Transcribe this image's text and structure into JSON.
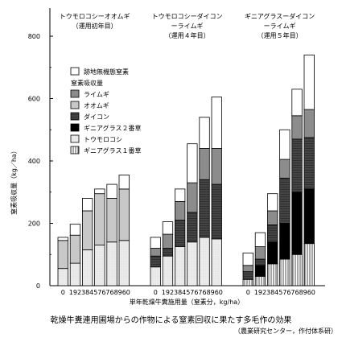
{
  "chart_data": {
    "type": "bar",
    "stacked": true,
    "ylabel": "窒素吸収量",
    "yunit": "（kg／ha）",
    "xlabel": "単年乾燥牛糞施用量（窒素分，kg/ha）",
    "ylim": [
      0,
      900
    ],
    "yticks": [
      0,
      200,
      400,
      600,
      800
    ],
    "groups": [
      {
        "title": "トウモロコシーオオムギ",
        "subtitle": "（運用初年目）",
        "categories": [
          "0",
          "192",
          "384",
          "576",
          "768",
          "960"
        ],
        "series": [
          {
            "name": "ギニアグラス１番草",
            "values": [
              0,
              0,
              0,
              0,
              0,
              0
            ]
          },
          {
            "name": "トウモロコシ",
            "values": [
              55,
              72,
              115,
              130,
              140,
              145
            ]
          },
          {
            "name": "ギニアグラス２番草",
            "values": [
              0,
              0,
              0,
              0,
              0,
              0
            ]
          },
          {
            "name": "ダイコン",
            "values": [
              0,
              0,
              0,
              0,
              0,
              0
            ]
          },
          {
            "name": "オオムギ",
            "values": [
              90,
              90,
              125,
              165,
              140,
              165
            ]
          },
          {
            "name": "ライムギ",
            "values": [
              0,
              0,
              0,
              0,
              0,
              0
            ]
          },
          {
            "name": "跡地無機態窒素",
            "values": [
              10,
              35,
              40,
              15,
              45,
              45
            ]
          }
        ]
      },
      {
        "title": "トウモロコシーダイコン",
        "subtitle2": "ーライムギ",
        "subtitle": "（運用４年目）",
        "categories": [
          "0",
          "192",
          "384",
          "576",
          "768",
          "960"
        ],
        "series": [
          {
            "name": "ギニアグラス１番草",
            "values": [
              0,
              0,
              0,
              0,
              0,
              0
            ]
          },
          {
            "name": "トウモロコシ",
            "values": [
              60,
              95,
              125,
              140,
              155,
              150
            ]
          },
          {
            "name": "ギニアグラス２番草",
            "values": [
              0,
              0,
              0,
              0,
              0,
              0
            ]
          },
          {
            "name": "ダイコン",
            "values": [
              35,
              25,
              85,
              95,
              185,
              175
            ]
          },
          {
            "name": "オオムギ",
            "values": [
              0,
              0,
              0,
              0,
              0,
              0
            ]
          },
          {
            "name": "ライムギ",
            "values": [
              25,
              45,
              60,
              95,
              100,
              115
            ]
          },
          {
            "name": "跡地無機態窒素",
            "values": [
              35,
              40,
              40,
              125,
              100,
              165
            ]
          }
        ]
      },
      {
        "title": "ギニアグラスーダイコン",
        "subtitle2": "ーライムギ",
        "subtitle": "（運用５年目）",
        "categories": [
          "0",
          "192",
          "384",
          "576",
          "768",
          "960"
        ],
        "series": [
          {
            "name": "ギニアグラス１番草",
            "values": [
              20,
              30,
              70,
              85,
              100,
              135
            ]
          },
          {
            "name": "トウモロコシ",
            "values": [
              0,
              0,
              0,
              0,
              0,
              0
            ]
          },
          {
            "name": "ギニアグラス２番草",
            "values": [
              0,
              35,
              70,
              115,
              200,
              175
            ]
          },
          {
            "name": "ダイコン",
            "values": [
              25,
              20,
              55,
              145,
              170,
              165
            ]
          },
          {
            "name": "オオムギ",
            "values": [
              0,
              0,
              0,
              0,
              0,
              0
            ]
          },
          {
            "name": "ライムギ",
            "values": [
              20,
              40,
              45,
              60,
              75,
              90
            ]
          },
          {
            "name": "跡地無機態窒素",
            "values": [
              40,
              45,
              55,
              95,
              85,
              175
            ]
          }
        ]
      }
    ],
    "legend": [
      {
        "name": "跡地無機態窒素",
        "key": "residual"
      },
      {
        "name": "窒素吸収量",
        "key": "header"
      },
      {
        "name": "ライムギ",
        "key": "rye"
      },
      {
        "name": "オオムギ",
        "key": "barley"
      },
      {
        "name": "ダイコン",
        "key": "daikon"
      },
      {
        "name": "ギニアグラス２番草",
        "key": "guinea2"
      },
      {
        "name": "トウモロコシ",
        "key": "corn"
      },
      {
        "name": "ギニアグラス１番草",
        "key": "guinea1"
      }
    ],
    "colors": {
      "residual": "#ffffff",
      "rye": "#8c8c8c",
      "barley": "#c8c8c8",
      "daikon": "#3a3a3a",
      "guinea2": "#000000",
      "corn": "#eeeeee",
      "guinea1": "#ffffff"
    }
  },
  "caption": "乾燥牛糞連用圃場からの作物による窒素回収に果たす多毛作の効果",
  "source": "（農業研究センター，作付体系研）"
}
